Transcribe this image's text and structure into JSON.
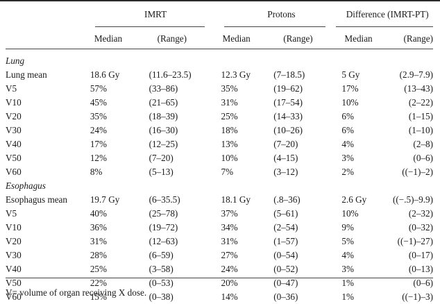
{
  "header": {
    "groups": [
      "IMRT",
      "Protons",
      "Difference (IMRT-PT)"
    ],
    "subheads": [
      "Median",
      "(Range)",
      "Median",
      "(Range)",
      "Median",
      "(Range)"
    ]
  },
  "sections": [
    {
      "title": "Lung",
      "rows": [
        {
          "label": "Lung mean",
          "values": [
            "18.6 Gy",
            "(11.6–23.5)",
            "12.3 Gy",
            "(7–18.5)",
            "5 Gy",
            "(2.9–7.9)"
          ]
        },
        {
          "label": "V5",
          "values": [
            "57%",
            "(33–86)",
            "35%",
            "(19–62)",
            "17%",
            "(13–43)"
          ]
        },
        {
          "label": "V10",
          "values": [
            "45%",
            "(21–65)",
            "31%",
            "(17–54)",
            "10%",
            "(2–22)"
          ]
        },
        {
          "label": "V20",
          "values": [
            "35%",
            "(18–39)",
            "25%",
            "(14–33)",
            "6%",
            "(1–15)"
          ]
        },
        {
          "label": "V30",
          "values": [
            "24%",
            "(16–30)",
            "18%",
            "(10–26)",
            "6%",
            "(1–10)"
          ]
        },
        {
          "label": "V40",
          "values": [
            "17%",
            "(12–25)",
            "13%",
            "(7–20)",
            "4%",
            "(2–8)"
          ]
        },
        {
          "label": "V50",
          "values": [
            "12%",
            "(7–20)",
            "10%",
            "(4–15)",
            "3%",
            "(0–6)"
          ]
        },
        {
          "label": "V60",
          "values": [
            "8%",
            "(5–13)",
            "7%",
            "(3–12)",
            "2%",
            "((−1)–2)"
          ]
        }
      ]
    },
    {
      "title": "Esophagus",
      "rows": [
        {
          "label": "Esophagus mean",
          "values": [
            "19.7 Gy",
            "(6–35.5)",
            "18.1 Gy",
            "(.8–36)",
            "2.6 Gy",
            "((−.5)–9.9)"
          ]
        },
        {
          "label": "V5",
          "values": [
            "40%",
            "(25–78)",
            "37%",
            "(5–61)",
            "10%",
            "(2–32)"
          ]
        },
        {
          "label": "V10",
          "values": [
            "36%",
            "(19–72)",
            "34%",
            "(2–54)",
            "9%",
            "(0–32)"
          ]
        },
        {
          "label": "V20",
          "values": [
            "31%",
            "(12–63)",
            "31%",
            "(1–57)",
            "5%",
            "((−1)–27)"
          ]
        },
        {
          "label": "V30",
          "values": [
            "28%",
            "(6–59)",
            "27%",
            "(0–54)",
            "4%",
            "(0–17)"
          ]
        },
        {
          "label": "V40",
          "values": [
            "25%",
            "(3–58)",
            "24%",
            "(0–52)",
            "3%",
            "(0–13)"
          ]
        },
        {
          "label": "V50",
          "values": [
            "22%",
            "(0–53)",
            "20%",
            "(0–47)",
            "1%",
            "(0–6)"
          ]
        },
        {
          "label": "V60",
          "values": [
            "15%",
            "(0–38)",
            "14%",
            "(0–36)",
            "1%",
            "((−1)–3)"
          ]
        }
      ]
    }
  ],
  "footnote": "V= volume of organ receiving X dose."
}
